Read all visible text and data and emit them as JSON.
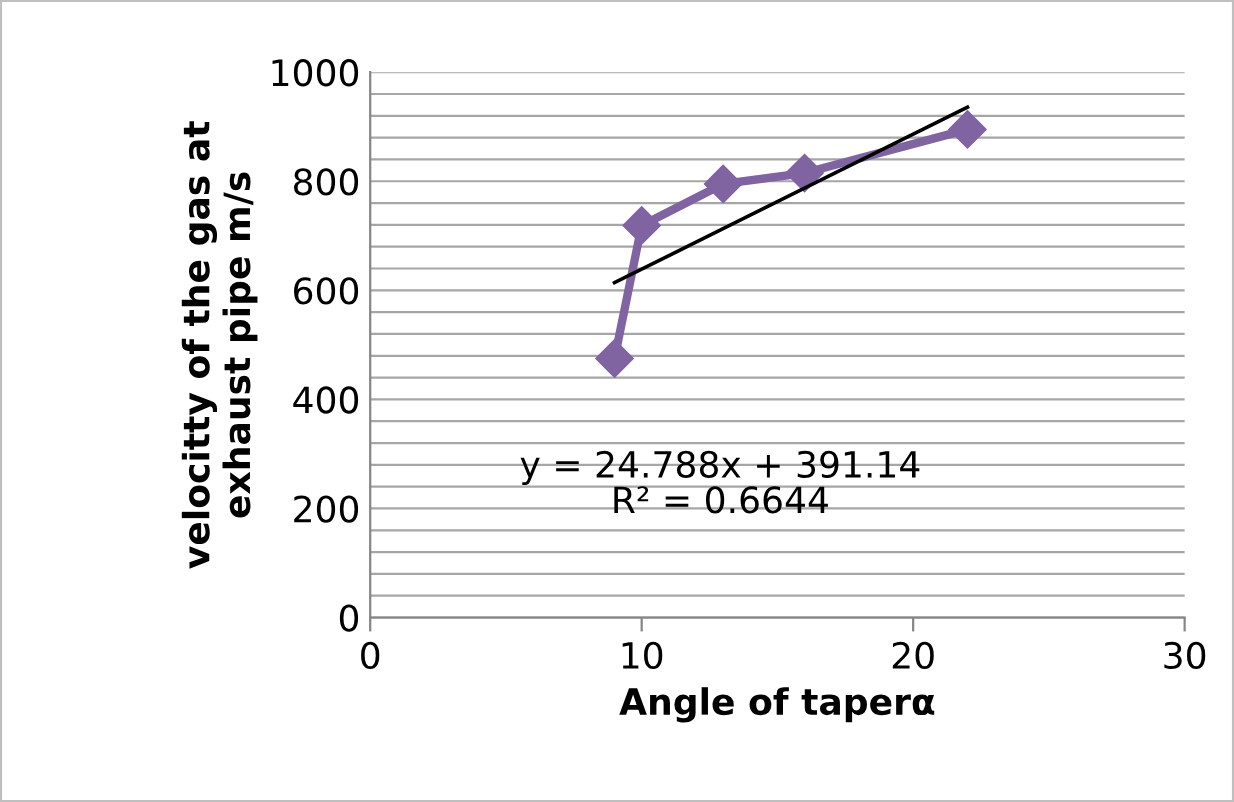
{
  "chart_data": {
    "type": "line",
    "xlabel": "Angle of taperα",
    "ylabel": "velocitty of the gas at\nexhaust pipe m/s",
    "x": [
      9,
      10,
      13,
      16,
      22
    ],
    "series": [
      {
        "color": "#8064a2",
        "values": [
          475,
          719,
          795,
          815,
          895
        ],
        "marker": "diamond"
      },
      {
        "type": "line",
        "color": "#000000",
        "x": [
          9,
          22
        ],
        "values": [
          614,
          936
        ],
        "marker": "none"
      }
    ],
    "annotations": [
      "y = 24.788x + 391.14",
      "R² = 0.6644"
    ],
    "xlim": [
      0,
      30
    ],
    "xticks": [
      0,
      10,
      20,
      30
    ],
    "ylim": [
      0,
      1000
    ],
    "yticks": [
      0,
      {
        "value": 40,
        "label": null
      },
      {
        "value": 80,
        "label": null
      },
      {
        "value": 120,
        "label": null
      },
      {
        "value": 160,
        "label": null
      },
      200,
      {
        "value": 240,
        "label": null
      },
      {
        "value": 280,
        "label": null
      },
      {
        "value": 320,
        "label": null
      },
      {
        "value": 360,
        "label": null
      },
      400,
      {
        "value": 440,
        "label": null
      },
      {
        "value": 480,
        "label": null
      },
      {
        "value": 520,
        "label": null
      },
      {
        "value": 560,
        "label": null
      },
      600,
      {
        "value": 640,
        "label": null
      },
      {
        "value": 680,
        "label": null
      },
      {
        "value": 720,
        "label": null
      },
      {
        "value": 760,
        "label": null
      },
      800,
      {
        "value": 840,
        "label": null
      },
      {
        "value": 880,
        "label": null
      },
      {
        "value": 920,
        "label": null
      },
      {
        "value": 960,
        "label": null
      },
      1000
    ],
    "grid": "y"
  }
}
